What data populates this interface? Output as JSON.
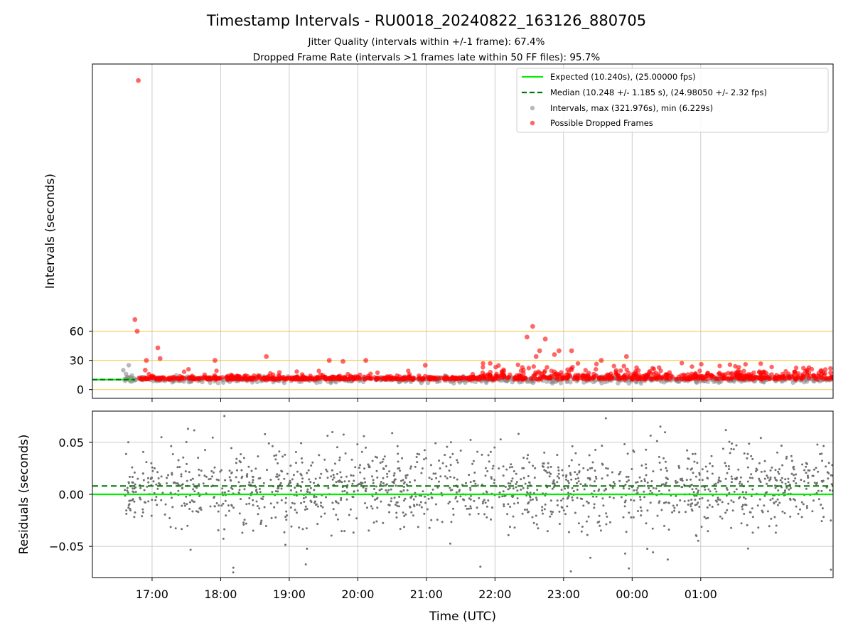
{
  "figure": {
    "title": "Timestamp Intervals - RU0018_20240822_163126_880705",
    "subtitle1": "Jitter Quality (intervals within +/-1 frame): 67.4%",
    "subtitle2": "Dropped Frame Rate (intervals >1 frames late within 50 FF files): 95.7%"
  },
  "chart_data": [
    {
      "type": "scatter",
      "name": "intervals",
      "ylabel": "Intervals (seconds)",
      "xlabel": "",
      "x_range_hours": [
        16.13,
        26.93
      ],
      "ylim": [
        -9,
        335
      ],
      "yticks": [
        0,
        30,
        60
      ],
      "reference_lines_y": [
        0,
        30,
        60
      ],
      "reference_line_color": "#f5c842",
      "grid": "x",
      "legend_position": "top-right",
      "legend": [
        "Expected (10.240s), (25.00000 fps)",
        "Median (10.248 +/- 1.185 s), (24.98050 +/- 2.32 fps)",
        "Intervals, max (321.976s), min (6.229s)",
        "Possible Dropped Frames"
      ],
      "expected_interval": 10.24,
      "median_interval": 10.248,
      "max_interval": 321.976,
      "min_interval": 6.229,
      "colors": {
        "expected": "#00ee00",
        "median": "#007700",
        "intervals": "#888888",
        "dropped": "#ff0000"
      },
      "notable_dropped_points": [
        {
          "x": "16:48",
          "y": 318
        },
        {
          "x": "16:45",
          "y": 72
        },
        {
          "x": "16:47",
          "y": 60
        },
        {
          "x": "17:05",
          "y": 43
        },
        {
          "x": "17:07",
          "y": 32
        },
        {
          "x": "16:55",
          "y": 30
        },
        {
          "x": "16:54",
          "y": 20
        },
        {
          "x": "18:40",
          "y": 34
        },
        {
          "x": "17:55",
          "y": 30
        },
        {
          "x": "22:33",
          "y": 65
        },
        {
          "x": "22:28",
          "y": 54
        },
        {
          "x": "22:44",
          "y": 52
        },
        {
          "x": "22:39",
          "y": 40
        },
        {
          "x": "22:36",
          "y": 34
        },
        {
          "x": "22:52",
          "y": 36
        },
        {
          "x": "22:56",
          "y": 40
        },
        {
          "x": "23:07",
          "y": 40
        },
        {
          "x": "23:33",
          "y": 30
        },
        {
          "x": "23:55",
          "y": 34
        },
        {
          "x": "19:35",
          "y": 30
        },
        {
          "x": "19:47",
          "y": 29
        },
        {
          "x": "20:07",
          "y": 30
        },
        {
          "x": "20:59",
          "y": 25
        }
      ]
    },
    {
      "type": "scatter",
      "name": "residuals",
      "ylabel": "Residuals (seconds)",
      "xlabel": "Time (UTC)",
      "x_range_hours": [
        16.13,
        26.93
      ],
      "xticks": [
        "17:00",
        "18:00",
        "19:00",
        "20:00",
        "21:00",
        "22:00",
        "23:00",
        "00:00",
        "01:00"
      ],
      "ylim": [
        -0.08,
        0.08
      ],
      "yticks": [
        -0.05,
        0.0,
        0.05
      ],
      "ytick_labels": [
        "−0.05",
        "0.00",
        "0.05"
      ],
      "grid": "both",
      "expected_residual": 0.0,
      "median_residual": 0.008,
      "colors": {
        "points": "#707070",
        "expected": "#00ee00",
        "median": "#007700"
      }
    }
  ]
}
